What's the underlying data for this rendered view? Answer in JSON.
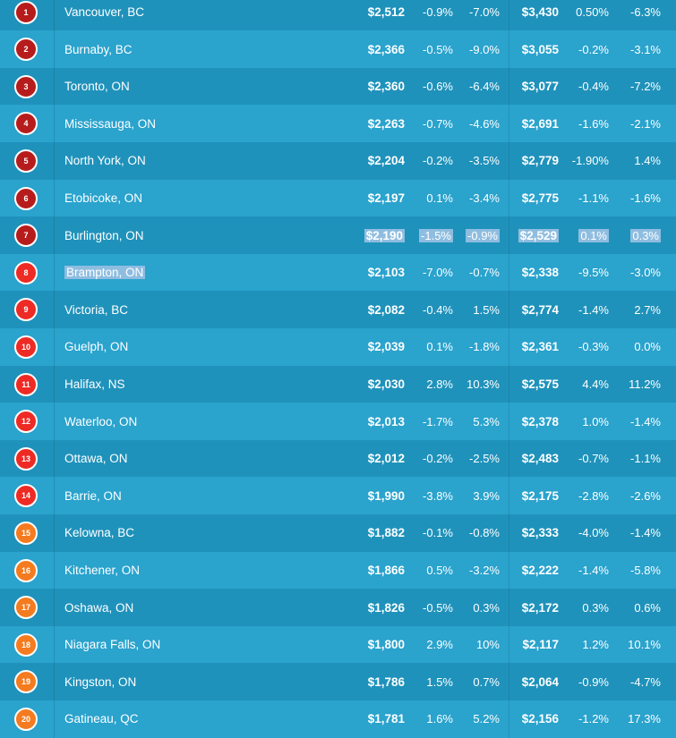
{
  "colors": {
    "row_odd": "#2aa3cd",
    "row_even": "#1f92bb",
    "badge_dark_red": "#b71c1c",
    "badge_red": "#ee2a24",
    "badge_orange": "#f47b1f",
    "selection": "#8fbde0"
  },
  "rows": [
    {
      "rank": "1",
      "city": "Vancouver, BC",
      "price1": "$2,512",
      "m1": "-0.9%",
      "y1": "-7.0%",
      "price2": "$3,430",
      "m2": "0.50%",
      "y2": "-6.3%",
      "badge": "dark-red"
    },
    {
      "rank": "2",
      "city": "Burnaby, BC",
      "price1": "$2,366",
      "m1": "-0.5%",
      "y1": "-9.0%",
      "price2": "$3,055",
      "m2": "-0.2%",
      "y2": "-3.1%",
      "badge": "dark-red"
    },
    {
      "rank": "3",
      "city": "Toronto, ON",
      "price1": "$2,360",
      "m1": "-0.6%",
      "y1": "-6.4%",
      "price2": "$3,077",
      "m2": "-0.4%",
      "y2": "-7.2%",
      "badge": "dark-red"
    },
    {
      "rank": "4",
      "city": "Mississauga, ON",
      "price1": "$2,263",
      "m1": "-0.7%",
      "y1": "-4.6%",
      "price2": "$2,691",
      "m2": "-1.6%",
      "y2": "-2.1%",
      "badge": "dark-red"
    },
    {
      "rank": "5",
      "city": "North York, ON",
      "price1": "$2,204",
      "m1": "-0.2%",
      "y1": "-3.5%",
      "price2": "$2,779",
      "m2": "-1.90%",
      "y2": "1.4%",
      "badge": "dark-red"
    },
    {
      "rank": "6",
      "city": "Etobicoke, ON",
      "price1": "$2,197",
      "m1": "0.1%",
      "y1": "-3.4%",
      "price2": "$2,775",
      "m2": "-1.1%",
      "y2": "-1.6%",
      "badge": "dark-red"
    },
    {
      "rank": "7",
      "city": "Burlington, ON",
      "price1": "$2,190",
      "m1": "-1.5%",
      "y1": "-0.9%",
      "price2": "$2,529",
      "m2": "0.1%",
      "y2": "0.3%",
      "badge": "dark-red"
    },
    {
      "rank": "8",
      "city": "Brampton, ON",
      "price1": "$2,103",
      "m1": "-7.0%",
      "y1": "-0.7%",
      "price2": "$2,338",
      "m2": "-9.5%",
      "y2": "-3.0%",
      "badge": "red"
    },
    {
      "rank": "9",
      "city": "Victoria, BC",
      "price1": "$2,082",
      "m1": "-0.4%",
      "y1": "1.5%",
      "price2": "$2,774",
      "m2": "-1.4%",
      "y2": "2.7%",
      "badge": "red"
    },
    {
      "rank": "10",
      "city": "Guelph, ON",
      "price1": "$2,039",
      "m1": "0.1%",
      "y1": "-1.8%",
      "price2": "$2,361",
      "m2": "-0.3%",
      "y2": "0.0%",
      "badge": "red"
    },
    {
      "rank": "11",
      "city": "Halifax, NS",
      "price1": "$2,030",
      "m1": "2.8%",
      "y1": "10.3%",
      "price2": "$2,575",
      "m2": "4.4%",
      "y2": "11.2%",
      "badge": "red"
    },
    {
      "rank": "12",
      "city": "Waterloo, ON",
      "price1": "$2,013",
      "m1": "-1.7%",
      "y1": "5.3%",
      "price2": "$2,378",
      "m2": "1.0%",
      "y2": "-1.4%",
      "badge": "red"
    },
    {
      "rank": "13",
      "city": "Ottawa, ON",
      "price1": "$2,012",
      "m1": "-0.2%",
      "y1": "-2.5%",
      "price2": "$2,483",
      "m2": "-0.7%",
      "y2": "-1.1%",
      "badge": "red"
    },
    {
      "rank": "14",
      "city": "Barrie, ON",
      "price1": "$1,990",
      "m1": "-3.8%",
      "y1": "3.9%",
      "price2": "$2,175",
      "m2": "-2.8%",
      "y2": "-2.6%",
      "badge": "red"
    },
    {
      "rank": "15",
      "city": "Kelowna, BC",
      "price1": "$1,882",
      "m1": "-0.1%",
      "y1": "-0.8%",
      "price2": "$2,333",
      "m2": "-4.0%",
      "y2": "-1.4%",
      "badge": "orange"
    },
    {
      "rank": "16",
      "city": "Kitchener, ON",
      "price1": "$1,866",
      "m1": "0.5%",
      "y1": "-3.2%",
      "price2": "$2,222",
      "m2": "-1.4%",
      "y2": "-5.8%",
      "badge": "orange"
    },
    {
      "rank": "17",
      "city": "Oshawa, ON",
      "price1": "$1,826",
      "m1": "-0.5%",
      "y1": "0.3%",
      "price2": "$2,172",
      "m2": "0.3%",
      "y2": "0.6%",
      "badge": "orange"
    },
    {
      "rank": "18",
      "city": "Niagara Falls, ON",
      "price1": "$1,800",
      "m1": "2.9%",
      "y1": "10%",
      "price2": "$2,117",
      "m2": "1.2%",
      "y2": "10.1%",
      "badge": "orange"
    },
    {
      "rank": "19",
      "city": "Kingston, ON",
      "price1": "$1,786",
      "m1": "1.5%",
      "y1": "0.7%",
      "price2": "$2,064",
      "m2": "-0.9%",
      "y2": "-4.7%",
      "badge": "orange"
    },
    {
      "rank": "20",
      "city": "Gatineau, QC",
      "price1": "$1,781",
      "m1": "1.6%",
      "y1": "5.2%",
      "price2": "$2,156",
      "m2": "-1.2%",
      "y2": "17.3%",
      "badge": "orange"
    }
  ]
}
